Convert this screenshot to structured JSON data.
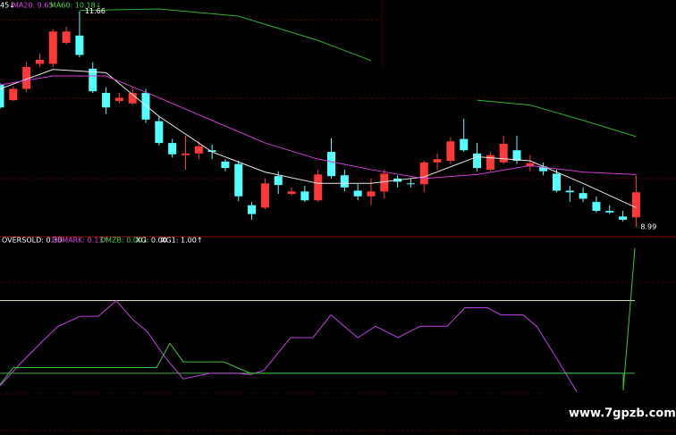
{
  "chart_data": [
    {
      "type": "candlestick",
      "labels": [
        "45↓",
        "MA20: 9.65",
        "MA60: 10.18↓"
      ],
      "label_colors": [
        "#ffffff",
        "#e040e0",
        "#40d040"
      ],
      "x": [
        0,
        1,
        2,
        3,
        4,
        5,
        6,
        7,
        8,
        9,
        10,
        11,
        12,
        13,
        14,
        15,
        16,
        17,
        18,
        19,
        20,
        21,
        22,
        23,
        24,
        25,
        26,
        27,
        28,
        29,
        30,
        31,
        32,
        33,
        34,
        35,
        36,
        37,
        38,
        39,
        40,
        41,
        42,
        43,
        44,
        45,
        46,
        47,
        48
      ],
      "open": [
        10.75,
        10.56,
        10.7,
        11.01,
        11.01,
        11.27,
        11.36,
        10.95,
        10.65,
        10.55,
        10.52,
        10.65,
        10.3,
        10.03,
        9.88,
        9.9,
        9.94,
        9.8,
        9.77,
        9.26,
        9.23,
        9.62,
        9.4,
        9.43,
        9.32,
        9.92,
        9.63,
        9.44,
        9.37,
        9.43,
        9.59,
        9.53,
        9.52,
        9.79,
        9.81,
        10.08,
        9.9,
        9.7,
        9.79,
        9.94,
        9.74,
        9.74,
        9.65,
        9.44,
        9.41,
        9.3,
        9.19,
        9.12,
        9.11
      ],
      "high": [
        10.77,
        10.73,
        11.03,
        11.14,
        11.44,
        11.47,
        11.66,
        11.03,
        10.72,
        10.65,
        10.72,
        10.7,
        10.36,
        10.08,
        10.12,
        10.05,
        10.01,
        9.83,
        9.81,
        9.3,
        9.59,
        9.68,
        9.48,
        9.5,
        9.7,
        10.09,
        9.7,
        9.52,
        9.59,
        9.7,
        9.63,
        9.59,
        9.81,
        9.9,
        10.1,
        10.33,
        10.03,
        9.92,
        10.12,
        10.12,
        9.88,
        9.79,
        9.7,
        9.5,
        9.48,
        9.37,
        9.26,
        9.19,
        9.63
      ],
      "low": [
        10.45,
        10.55,
        10.66,
        10.97,
        10.97,
        11.25,
        11.09,
        10.65,
        10.39,
        10.52,
        10.5,
        10.28,
        10.0,
        9.85,
        9.7,
        9.83,
        9.83,
        9.68,
        9.31,
        9.08,
        9.21,
        9.4,
        9.38,
        9.3,
        9.3,
        9.59,
        9.43,
        9.32,
        9.26,
        9.34,
        9.48,
        9.48,
        9.42,
        9.7,
        9.77,
        9.92,
        9.68,
        9.68,
        9.77,
        9.77,
        9.68,
        9.63,
        9.42,
        9.3,
        9.3,
        9.17,
        9.15,
        9.06,
        8.99
      ],
      "close": [
        10.47,
        10.7,
        10.97,
        11.06,
        11.41,
        11.41,
        11.12,
        10.67,
        10.47,
        10.59,
        10.65,
        10.32,
        10.03,
        9.89,
        9.9,
        9.99,
        9.92,
        9.72,
        9.37,
        9.15,
        9.53,
        9.51,
        9.43,
        9.32,
        9.64,
        9.62,
        9.48,
        9.37,
        9.43,
        9.65,
        9.55,
        9.52,
        9.79,
        9.83,
        10.05,
        9.94,
        9.72,
        9.88,
        10.02,
        9.81,
        9.78,
        9.68,
        9.44,
        9.42,
        9.34,
        9.19,
        9.17,
        9.08,
        9.42
      ],
      "up_color": "#ff3838",
      "down_color": "#54ffff",
      "high_label": 11.66,
      "low_label": 8.99,
      "series": [
        {
          "color": "#e8e8e8",
          "x": [
            0,
            4,
            8,
            12,
            16,
            20,
            24,
            28,
            32,
            36,
            40,
            44,
            48
          ],
          "values": [
            10.7,
            10.94,
            10.9,
            10.36,
            9.92,
            9.67,
            9.53,
            9.53,
            9.61,
            9.86,
            9.81,
            9.53,
            9.23
          ]
        },
        {
          "color": "#d040d0",
          "x": [
            0,
            4,
            8,
            12,
            16,
            20,
            24,
            28,
            32,
            36,
            40,
            44,
            48
          ],
          "values": [
            10.75,
            10.86,
            10.86,
            10.59,
            10.31,
            10.03,
            9.83,
            9.7,
            9.59,
            9.64,
            9.75,
            9.67,
            9.64
          ]
        },
        {
          "color": "#30b030",
          "x": [
            6,
            12,
            18,
            24,
            28,
            32,
            36,
            40,
            44,
            48
          ],
          "values": [
            11.67,
            11.69,
            11.6,
            11.3,
            11.05,
            null,
            10.56,
            10.5,
            10.31,
            10.11
          ]
        }
      ],
      "xlim": [
        0,
        51.01
      ],
      "ylim": [
        8.87,
        11.8
      ]
    },
    {
      "type": "line",
      "labels": [
        "OVERSOLD: 0.30",
        "DEMARK: 0.13↑",
        "DMZB: 0.00↓",
        "XG: 0.00",
        "XG1: 1.00↑"
      ],
      "label_colors": [
        "#ffffff",
        "#e040e0",
        "#40d040",
        "#ffffff",
        "#ffffff"
      ],
      "reference_lines": [
        0.63,
        0.12
      ],
      "reference_colors": [
        "#d8d8c0",
        "#40b040"
      ],
      "series": [
        {
          "color": "#c040e0",
          "x": [
            0,
            1.35,
            3.04,
            4.39,
            6.07,
            7.42,
            8.77,
            9.99,
            11.13,
            12.48,
            13.83,
            15.86,
            17.88,
            18.89,
            19.91,
            21.93,
            23.62,
            24.97,
            26.99,
            28.34,
            30.03,
            31.71,
            33.74,
            35.09,
            36.77,
            37.79,
            39.47,
            40.49,
            42.17,
            43.52
          ],
          "values": [
            0.03,
            0.17,
            0.33,
            0.45,
            0.52,
            0.52,
            0.63,
            0.5,
            0.41,
            0.23,
            0.08,
            0.12,
            0.12,
            0.11,
            0.14,
            0.37,
            0.37,
            0.53,
            0.37,
            0.45,
            0.37,
            0.45,
            0.45,
            0.58,
            0.58,
            0.53,
            0.53,
            0.45,
            0.2,
            -0.01
          ]
        },
        {
          "color": "#40c040",
          "x": [
            0,
            1.01,
            11.81,
            12.82,
            13.83,
            16.87,
            18.89,
            47.03,
            47.03,
            47.91
          ],
          "values": [
            0.04,
            0.16,
            0.16,
            0.33,
            0.2,
            0.2,
            0.12,
            0.12,
            0,
            1.0
          ]
        }
      ],
      "xlim": [
        0,
        51.01
      ],
      "ylim": [
        -0.27,
        1.06
      ]
    }
  ],
  "watermark": "www.7gpzb.com"
}
